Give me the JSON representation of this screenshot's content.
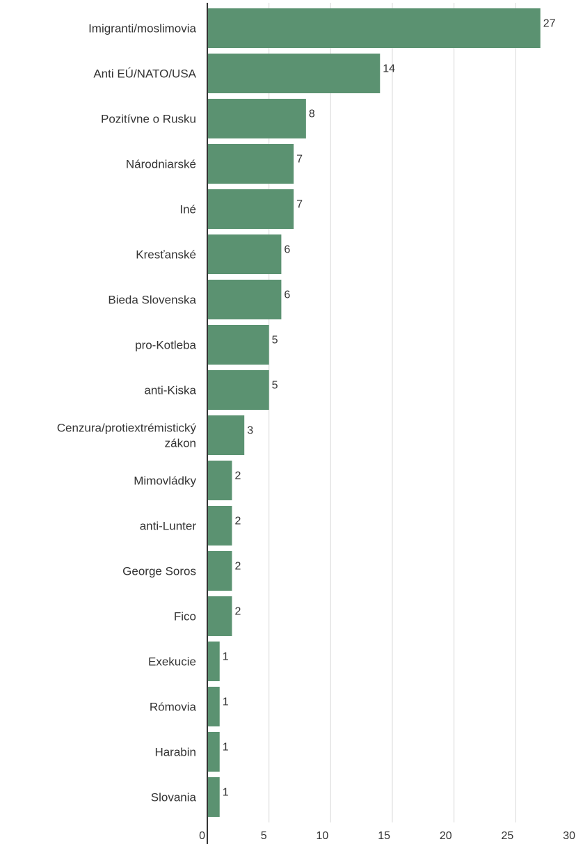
{
  "chart_data": {
    "type": "bar",
    "orientation": "horizontal",
    "categories": [
      [
        "Imigranti/moslimovia"
      ],
      [
        "Anti EÚ/NATO/USA"
      ],
      [
        "Pozitívne o Rusku"
      ],
      [
        "Národniarské"
      ],
      [
        "Iné"
      ],
      [
        "Kresťanské"
      ],
      [
        "Bieda Slovenska"
      ],
      [
        "pro-Kotleba"
      ],
      [
        "anti-Kiska"
      ],
      [
        "Cenzura/protiextrémistický",
        "zákon"
      ],
      [
        "Mimovládky"
      ],
      [
        "anti-Lunter"
      ],
      [
        "George Soros"
      ],
      [
        "Fico"
      ],
      [
        "Exekucie"
      ],
      [
        "Rómovia"
      ],
      [
        "Harabin"
      ],
      [
        "Slovania"
      ]
    ],
    "values": [
      27,
      14,
      8,
      7,
      7,
      6,
      6,
      5,
      5,
      3,
      2,
      2,
      2,
      2,
      1,
      1,
      1,
      1
    ],
    "xlim": [
      0,
      30
    ],
    "xticks": [
      "0",
      "5",
      "10",
      "15",
      "20",
      "25",
      "30"
    ],
    "grid": true,
    "bar_color": "#5b9271",
    "grid_color": "#d9d9d9",
    "axis_color": "#333333"
  }
}
